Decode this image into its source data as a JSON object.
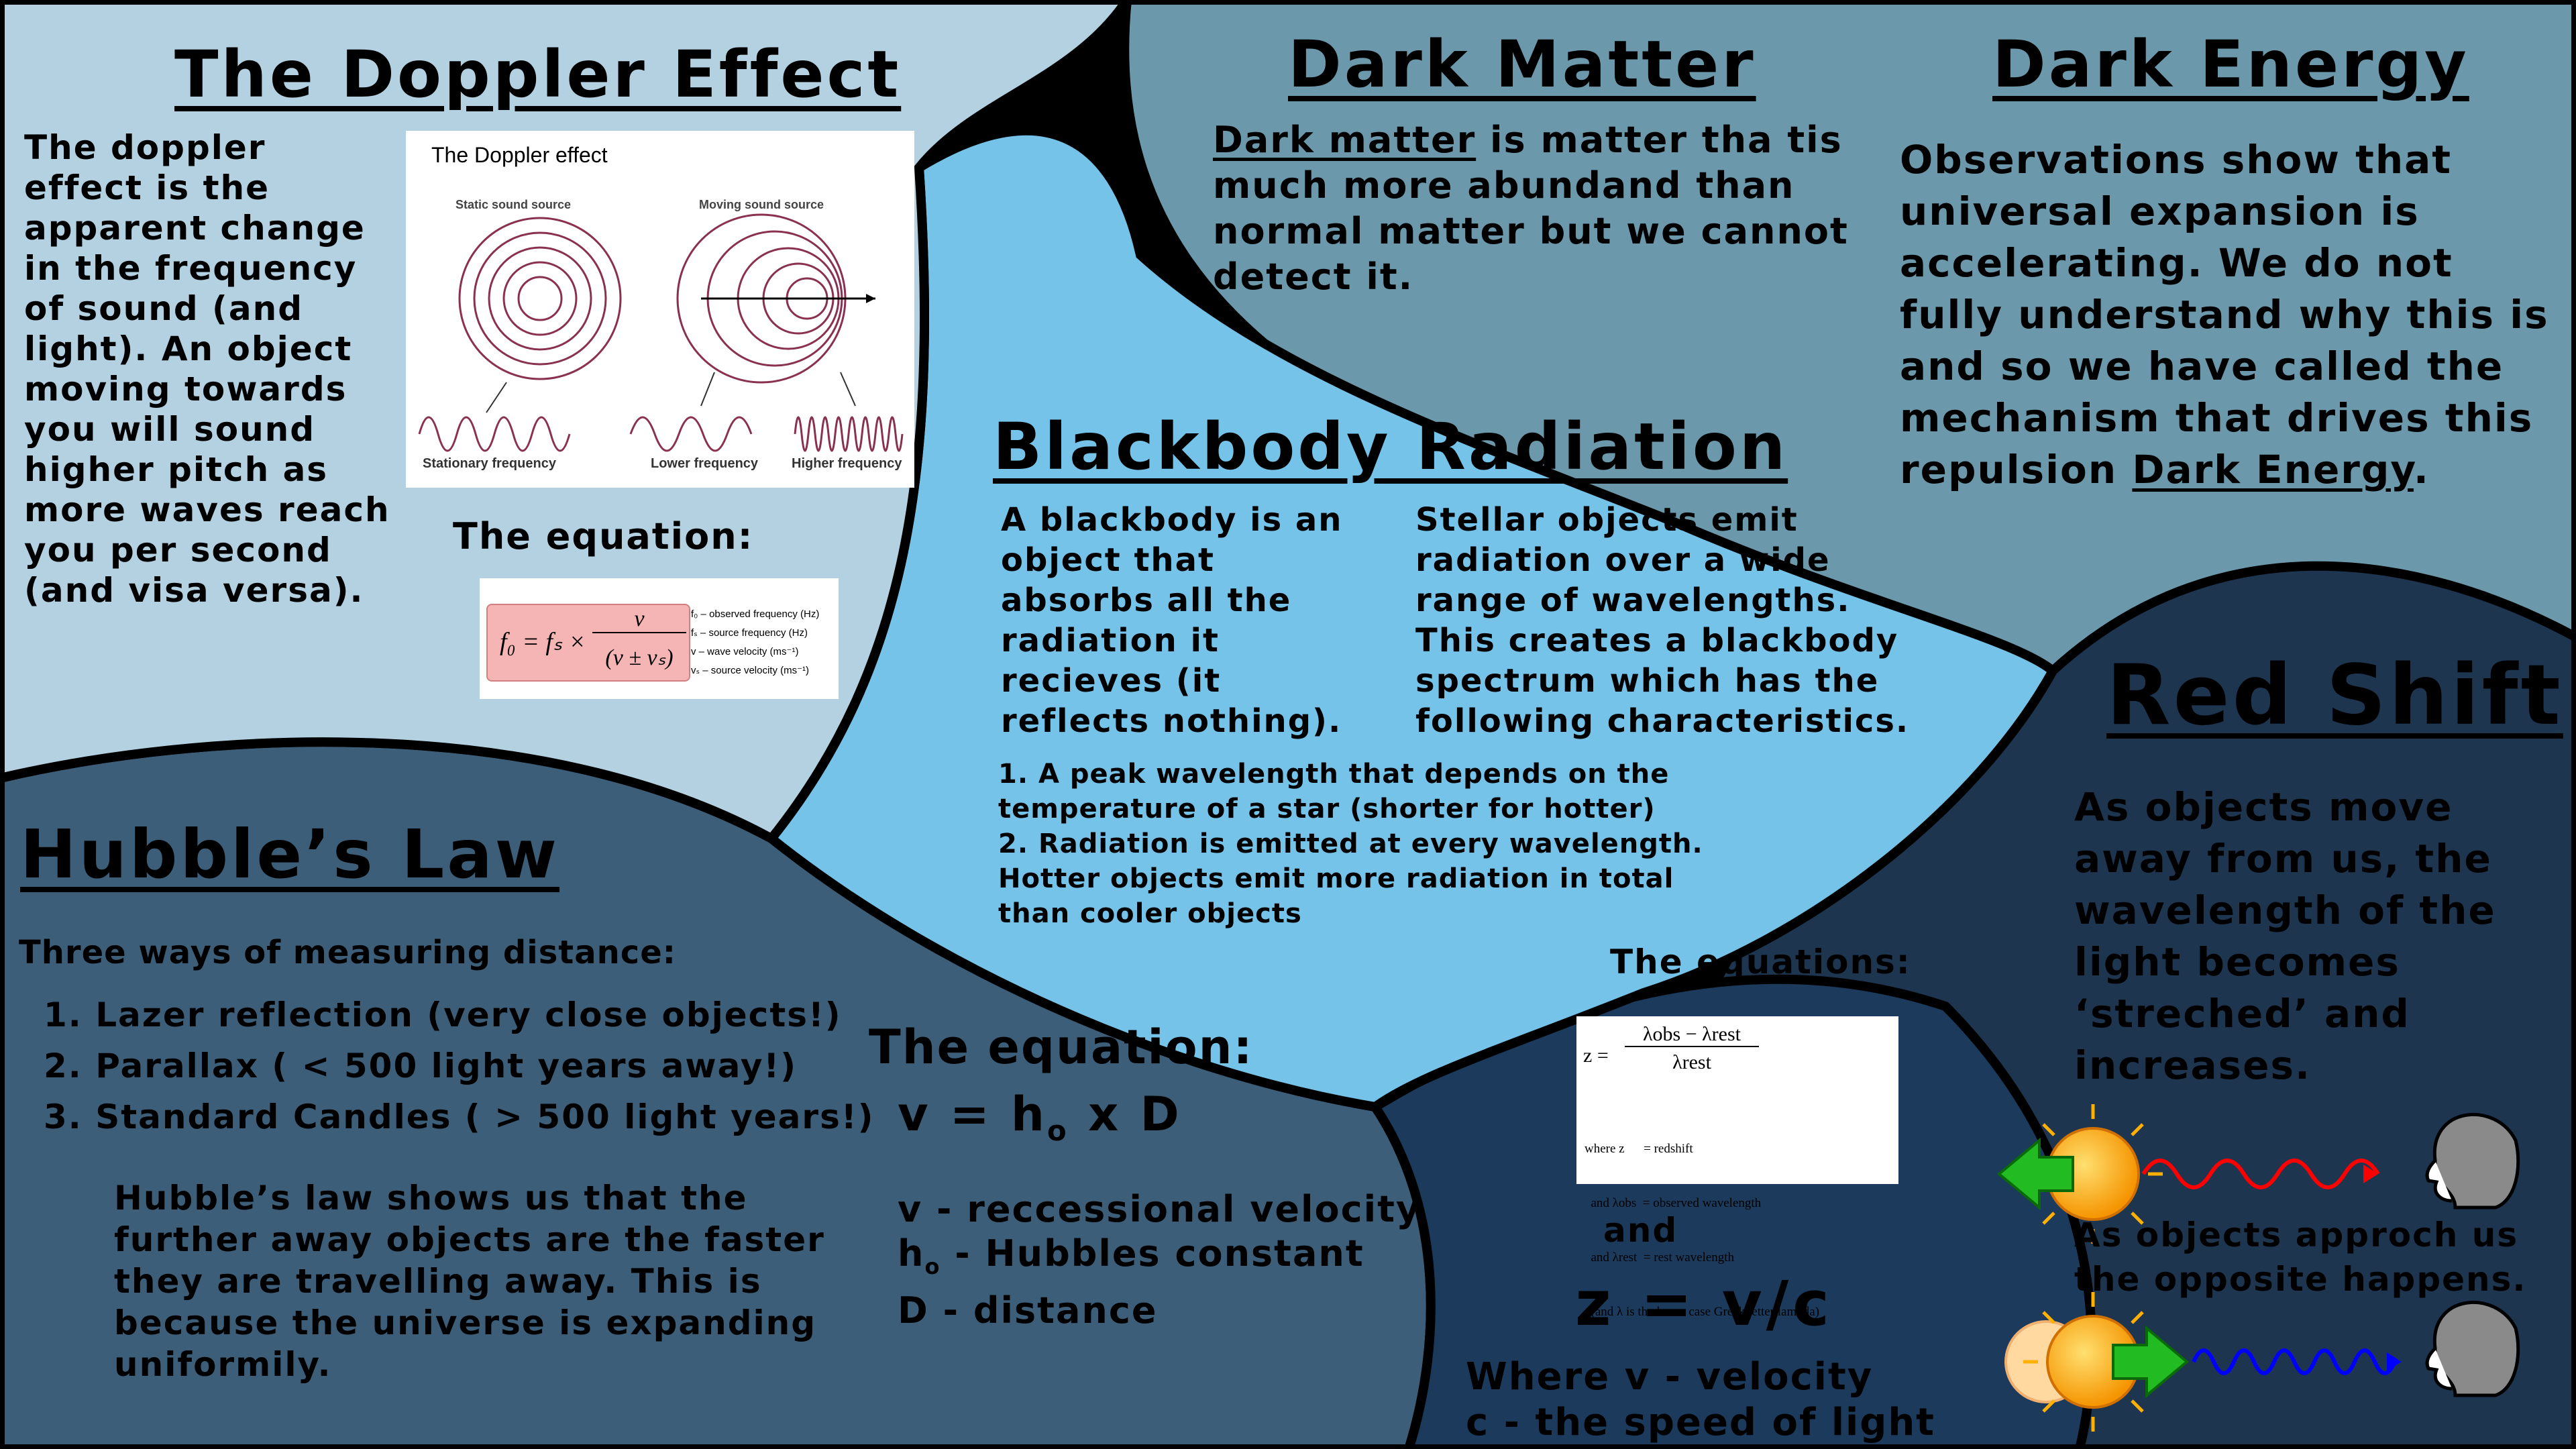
{
  "doppler": {
    "title": "The Doppler Effect",
    "body": "The doppler effect is the apparent change in the frequency of sound (and light). An object moving towards you will sound higher pitch as more waves reach you per second (and visa versa).",
    "figure": {
      "title": "The Doppler effect",
      "static_label": "Static sound source",
      "moving_label": "Moving sound source",
      "stationary_freq": "Stationary frequency",
      "lower_freq": "Lower frequency",
      "higher_freq": "Higher frequency"
    },
    "equation_label": "The equation:",
    "equation": {
      "lhs": "f₀ = fₛ ×",
      "numerator": "v",
      "denominator": "(v ± vₛ)",
      "legend": [
        "f₀ – observed frequency (Hz)",
        "fₛ – source frequency (Hz)",
        "v – wave velocity (ms⁻¹)",
        "vₛ – source velocity (ms⁻¹)"
      ]
    }
  },
  "dark_matter": {
    "title": "Dark Matter",
    "body_term": "Dark matter",
    "body_rest": " is matter tha tis much more abundand than normal matter but we cannot detect it."
  },
  "dark_energy": {
    "title": "Dark Energy",
    "body_main": "Observations show that universal expansion is accelerating. We do not fully understand why this is and so we have called the mechanism that drives this repulsion ",
    "body_term": "Dark Energy",
    "body_end": "."
  },
  "blackbody": {
    "title": "Blackbody Radiation",
    "col1": "A blackbody is an object that absorbs all the radiation it recieves (it reflects nothing).",
    "col2": "Stellar objects emit radiation over a wide range of wavelengths. This creates a blackbody spectrum which has the following characteristics.",
    "points": "1. A peak wavelength that depends on the temperature of a star (shorter for hotter)\n2. Radiation is emitted at every wavelength. Hotter objects emit more radiation in total than cooler objects"
  },
  "hubble": {
    "title": "Hubble’s Law",
    "subtitle": "Three ways of measuring distance:",
    "methods": [
      "1. Lazer reflection (very close objects!)",
      "2. Parallax ( < 500 light years away!)",
      "3. Standard Candles ( > 500 light years!)"
    ],
    "body": "Hubble’s law shows us that the further away objects are the faster they are travelling away. This is because the universe is expanding uniformily.",
    "equation_label": "The equation:",
    "equation_main": "v = h",
    "equation_sub": "o",
    "equation_tail": " x D",
    "var_v": "v - reccessional velocity",
    "var_h_main": "h",
    "var_h_sub": "o",
    "var_h_tail": " - Hubbles constant",
    "var_d": "D - distance"
  },
  "redshift_eq": {
    "label": "The equations:",
    "formula_lhs": "z =",
    "formula_num": "λobs − λrest",
    "formula_den": "λrest",
    "where_lines": [
      "where z      = redshift",
      "  and λobs  = observed wavelength",
      "  and λrest  = rest wavelength",
      "  (and λ is the lower case Greek letter lambda)"
    ],
    "and": "and",
    "z_eq": "z = v/c",
    "where_v": "Where v - velocity",
    "where_c": "c - the speed of light"
  },
  "red_shift": {
    "title": "Red Shift",
    "body": "As objects move away from us, the wavelength of the light becomes ‘streched’ and increases.",
    "approach": "As objects approch us the opposite happens."
  },
  "colors": {
    "doppler_panel": "#b3d1e1",
    "center_panel": "#75c3e8",
    "dark_panel": "#6b99ab",
    "hubble_panel": "#3d5e79",
    "right_panel": "#1e3550",
    "bottom_panel": "#1b3a5c",
    "red_wave": "#ff0000",
    "blue_wave": "#0000ff",
    "sun": "#ffa500",
    "arrow": "#22bb22"
  }
}
